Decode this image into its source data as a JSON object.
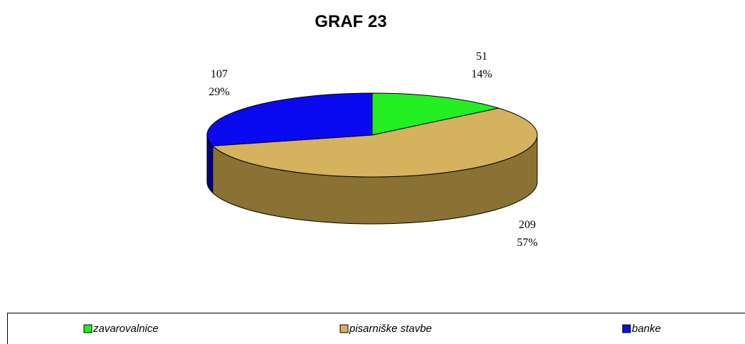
{
  "chart_data": {
    "type": "pie",
    "title": "GRAF 23",
    "categories": [
      "zavarovalnice",
      "pisarniške stavbe",
      "banke"
    ],
    "values": [
      51,
      209,
      107
    ],
    "percent_labels": [
      "14%",
      "57%",
      "29%"
    ],
    "colors": [
      "#22ee22",
      "#d4b25e",
      "#0a0af0"
    ],
    "side_colors": [
      "#159015",
      "#8a7234",
      "#000080"
    ],
    "legend": "bottom"
  }
}
